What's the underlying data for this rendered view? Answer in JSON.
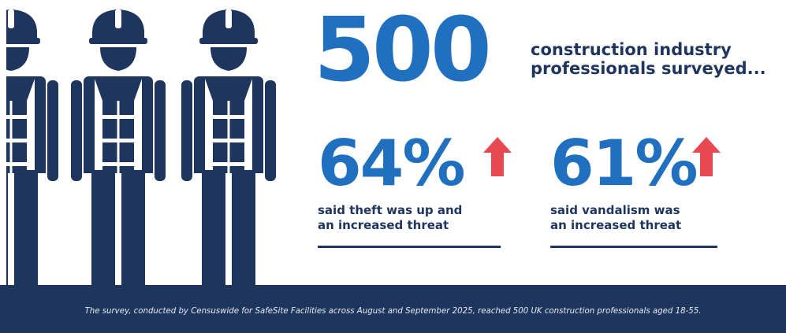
{
  "colors": {
    "brand_blue": "#2170bf",
    "navy": "#1e355e",
    "arrow_red": "#e8484f",
    "background": "#ffffff"
  },
  "illustration": {
    "figure": "construction-worker-icon",
    "count_visible": 3
  },
  "headline": {
    "number": "500",
    "text": "construction industry professionals surveyed..."
  },
  "stats": [
    {
      "value": "64%",
      "trend": "up-arrow-icon",
      "caption_line1": "said theft was up and",
      "caption_line2": "an increased threat"
    },
    {
      "value": "61%",
      "trend": "up-arrow-icon",
      "caption_line1": "said vandalism was",
      "caption_line2": "an increased threat"
    }
  ],
  "footer": {
    "note": "The survey, conducted by Censuswide for SafeSite Facilities across August and September 2025, reached 500 UK construction professionals aged 18-55."
  }
}
